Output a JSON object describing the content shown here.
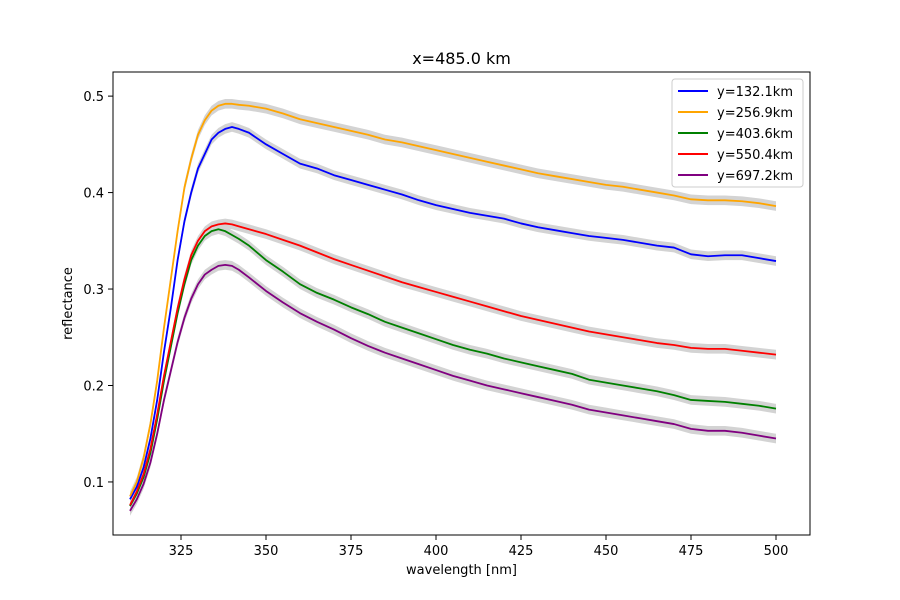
{
  "chart_data": {
    "type": "line",
    "title": "x=485.0 km",
    "xlabel": "wavelength [nm]",
    "ylabel": "reflectance",
    "xlim": [
      305,
      510
    ],
    "ylim": [
      0.045,
      0.525
    ],
    "xticks": [
      325,
      350,
      375,
      400,
      425,
      450,
      475,
      500
    ],
    "yticks": [
      0.1,
      0.2,
      0.3,
      0.4,
      0.5
    ],
    "xtick_labels": [
      "325",
      "350",
      "375",
      "400",
      "425",
      "450",
      "475",
      "500"
    ],
    "ytick_labels": [
      "0.1",
      "0.2",
      "0.3",
      "0.4",
      "0.5"
    ],
    "grid": false,
    "legend_position": "upper right",
    "uncertainty_band_color": "#d3d3d3",
    "uncertainty_halfwidth": 0.005,
    "series": [
      {
        "name": "y=132.1km",
        "color": "#0000ff",
        "points": [
          [
            310,
            0.082
          ],
          [
            312,
            0.095
          ],
          [
            314,
            0.115
          ],
          [
            316,
            0.145
          ],
          [
            318,
            0.185
          ],
          [
            320,
            0.235
          ],
          [
            322,
            0.28
          ],
          [
            324,
            0.33
          ],
          [
            326,
            0.37
          ],
          [
            328,
            0.4
          ],
          [
            330,
            0.425
          ],
          [
            332,
            0.44
          ],
          [
            334,
            0.455
          ],
          [
            336,
            0.462
          ],
          [
            338,
            0.466
          ],
          [
            340,
            0.468
          ],
          [
            342,
            0.466
          ],
          [
            345,
            0.462
          ],
          [
            350,
            0.45
          ],
          [
            355,
            0.44
          ],
          [
            360,
            0.43
          ],
          [
            365,
            0.425
          ],
          [
            370,
            0.418
          ],
          [
            375,
            0.413
          ],
          [
            380,
            0.408
          ],
          [
            385,
            0.403
          ],
          [
            390,
            0.398
          ],
          [
            395,
            0.392
          ],
          [
            400,
            0.387
          ],
          [
            405,
            0.383
          ],
          [
            410,
            0.379
          ],
          [
            415,
            0.376
          ],
          [
            420,
            0.373
          ],
          [
            425,
            0.368
          ],
          [
            430,
            0.364
          ],
          [
            435,
            0.361
          ],
          [
            440,
            0.358
          ],
          [
            445,
            0.355
          ],
          [
            450,
            0.353
          ],
          [
            455,
            0.351
          ],
          [
            460,
            0.348
          ],
          [
            465,
            0.345
          ],
          [
            470,
            0.343
          ],
          [
            475,
            0.336
          ],
          [
            480,
            0.334
          ],
          [
            485,
            0.335
          ],
          [
            490,
            0.335
          ],
          [
            495,
            0.332
          ],
          [
            500,
            0.329
          ]
        ]
      },
      {
        "name": "y=256.9km",
        "color": "#ffa500",
        "points": [
          [
            310,
            0.085
          ],
          [
            312,
            0.1
          ],
          [
            314,
            0.125
          ],
          [
            316,
            0.16
          ],
          [
            318,
            0.205
          ],
          [
            320,
            0.26
          ],
          [
            322,
            0.31
          ],
          [
            324,
            0.36
          ],
          [
            326,
            0.405
          ],
          [
            328,
            0.435
          ],
          [
            330,
            0.46
          ],
          [
            332,
            0.475
          ],
          [
            334,
            0.485
          ],
          [
            336,
            0.49
          ],
          [
            338,
            0.492
          ],
          [
            340,
            0.492
          ],
          [
            342,
            0.491
          ],
          [
            345,
            0.49
          ],
          [
            350,
            0.487
          ],
          [
            355,
            0.482
          ],
          [
            360,
            0.476
          ],
          [
            365,
            0.472
          ],
          [
            370,
            0.468
          ],
          [
            375,
            0.464
          ],
          [
            380,
            0.46
          ],
          [
            385,
            0.455
          ],
          [
            390,
            0.452
          ],
          [
            395,
            0.448
          ],
          [
            400,
            0.444
          ],
          [
            405,
            0.44
          ],
          [
            410,
            0.436
          ],
          [
            415,
            0.432
          ],
          [
            420,
            0.428
          ],
          [
            425,
            0.424
          ],
          [
            430,
            0.42
          ],
          [
            435,
            0.417
          ],
          [
            440,
            0.414
          ],
          [
            445,
            0.411
          ],
          [
            450,
            0.408
          ],
          [
            455,
            0.406
          ],
          [
            460,
            0.403
          ],
          [
            465,
            0.4
          ],
          [
            470,
            0.397
          ],
          [
            475,
            0.393
          ],
          [
            480,
            0.392
          ],
          [
            485,
            0.392
          ],
          [
            490,
            0.391
          ],
          [
            495,
            0.389
          ],
          [
            500,
            0.386
          ]
        ]
      },
      {
        "name": "y=403.6km",
        "color": "#008000",
        "points": [
          [
            310,
            0.075
          ],
          [
            312,
            0.088
          ],
          [
            314,
            0.105
          ],
          [
            316,
            0.13
          ],
          [
            318,
            0.165
          ],
          [
            320,
            0.205
          ],
          [
            322,
            0.24
          ],
          [
            324,
            0.275
          ],
          [
            326,
            0.305
          ],
          [
            328,
            0.33
          ],
          [
            330,
            0.345
          ],
          [
            332,
            0.355
          ],
          [
            334,
            0.36
          ],
          [
            336,
            0.362
          ],
          [
            338,
            0.36
          ],
          [
            340,
            0.356
          ],
          [
            342,
            0.352
          ],
          [
            345,
            0.345
          ],
          [
            350,
            0.33
          ],
          [
            355,
            0.318
          ],
          [
            360,
            0.305
          ],
          [
            365,
            0.296
          ],
          [
            370,
            0.289
          ],
          [
            375,
            0.281
          ],
          [
            380,
            0.274
          ],
          [
            385,
            0.266
          ],
          [
            390,
            0.26
          ],
          [
            395,
            0.254
          ],
          [
            400,
            0.248
          ],
          [
            405,
            0.242
          ],
          [
            410,
            0.237
          ],
          [
            415,
            0.233
          ],
          [
            420,
            0.228
          ],
          [
            425,
            0.224
          ],
          [
            430,
            0.22
          ],
          [
            435,
            0.216
          ],
          [
            440,
            0.212
          ],
          [
            445,
            0.206
          ],
          [
            450,
            0.203
          ],
          [
            455,
            0.2
          ],
          [
            460,
            0.197
          ],
          [
            465,
            0.194
          ],
          [
            470,
            0.19
          ],
          [
            475,
            0.185
          ],
          [
            480,
            0.184
          ],
          [
            485,
            0.183
          ],
          [
            490,
            0.181
          ],
          [
            495,
            0.179
          ],
          [
            500,
            0.176
          ]
        ]
      },
      {
        "name": "y=550.4km",
        "color": "#ff0000",
        "points": [
          [
            310,
            0.076
          ],
          [
            312,
            0.09
          ],
          [
            314,
            0.108
          ],
          [
            316,
            0.134
          ],
          [
            318,
            0.17
          ],
          [
            320,
            0.21
          ],
          [
            322,
            0.245
          ],
          [
            324,
            0.28
          ],
          [
            326,
            0.31
          ],
          [
            328,
            0.335
          ],
          [
            330,
            0.35
          ],
          [
            332,
            0.36
          ],
          [
            334,
            0.365
          ],
          [
            336,
            0.367
          ],
          [
            338,
            0.368
          ],
          [
            340,
            0.367
          ],
          [
            342,
            0.365
          ],
          [
            345,
            0.362
          ],
          [
            350,
            0.357
          ],
          [
            355,
            0.351
          ],
          [
            360,
            0.345
          ],
          [
            365,
            0.338
          ],
          [
            370,
            0.331
          ],
          [
            375,
            0.325
          ],
          [
            380,
            0.319
          ],
          [
            385,
            0.313
          ],
          [
            390,
            0.307
          ],
          [
            395,
            0.302
          ],
          [
            400,
            0.297
          ],
          [
            405,
            0.292
          ],
          [
            410,
            0.287
          ],
          [
            415,
            0.282
          ],
          [
            420,
            0.277
          ],
          [
            425,
            0.272
          ],
          [
            430,
            0.268
          ],
          [
            435,
            0.264
          ],
          [
            440,
            0.26
          ],
          [
            445,
            0.256
          ],
          [
            450,
            0.253
          ],
          [
            455,
            0.25
          ],
          [
            460,
            0.247
          ],
          [
            465,
            0.244
          ],
          [
            470,
            0.242
          ],
          [
            475,
            0.239
          ],
          [
            480,
            0.238
          ],
          [
            485,
            0.238
          ],
          [
            490,
            0.236
          ],
          [
            495,
            0.234
          ],
          [
            500,
            0.232
          ]
        ]
      },
      {
        "name": "y=697.2km",
        "color": "#800080",
        "points": [
          [
            310,
            0.07
          ],
          [
            312,
            0.082
          ],
          [
            314,
            0.098
          ],
          [
            316,
            0.12
          ],
          [
            318,
            0.15
          ],
          [
            320,
            0.185
          ],
          [
            322,
            0.215
          ],
          [
            324,
            0.245
          ],
          [
            326,
            0.27
          ],
          [
            328,
            0.29
          ],
          [
            330,
            0.305
          ],
          [
            332,
            0.315
          ],
          [
            334,
            0.32
          ],
          [
            336,
            0.324
          ],
          [
            338,
            0.325
          ],
          [
            340,
            0.324
          ],
          [
            342,
            0.32
          ],
          [
            345,
            0.312
          ],
          [
            350,
            0.298
          ],
          [
            355,
            0.286
          ],
          [
            360,
            0.275
          ],
          [
            365,
            0.266
          ],
          [
            370,
            0.258
          ],
          [
            375,
            0.249
          ],
          [
            380,
            0.241
          ],
          [
            385,
            0.234
          ],
          [
            390,
            0.228
          ],
          [
            395,
            0.222
          ],
          [
            400,
            0.216
          ],
          [
            405,
            0.21
          ],
          [
            410,
            0.205
          ],
          [
            415,
            0.2
          ],
          [
            420,
            0.196
          ],
          [
            425,
            0.192
          ],
          [
            430,
            0.188
          ],
          [
            435,
            0.184
          ],
          [
            440,
            0.18
          ],
          [
            445,
            0.175
          ],
          [
            450,
            0.172
          ],
          [
            455,
            0.169
          ],
          [
            460,
            0.166
          ],
          [
            465,
            0.163
          ],
          [
            470,
            0.16
          ],
          [
            475,
            0.155
          ],
          [
            480,
            0.153
          ],
          [
            485,
            0.153
          ],
          [
            490,
            0.151
          ],
          [
            495,
            0.148
          ],
          [
            500,
            0.145
          ]
        ]
      }
    ]
  }
}
